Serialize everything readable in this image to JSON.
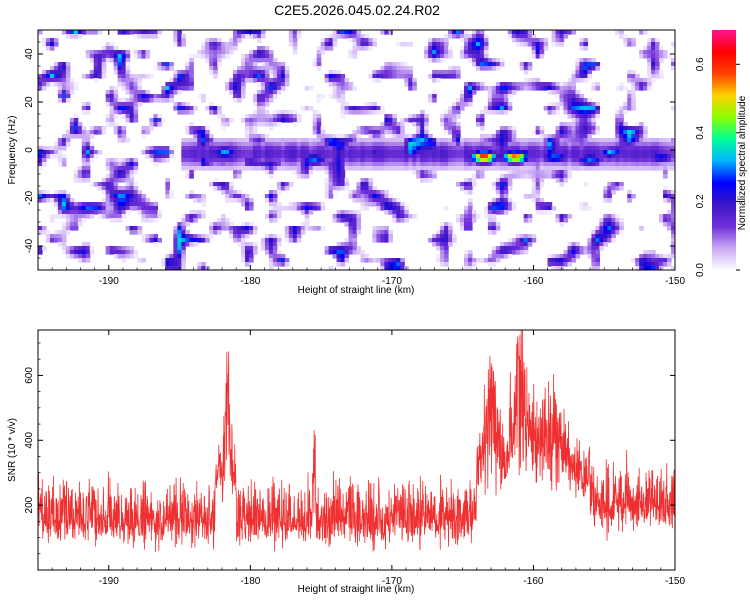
{
  "title": "C2E5.2026.045.02.24.R02",
  "chart_data": [
    {
      "type": "heatmap",
      "name": "spectrogram",
      "xlabel": "Height of straight line (km)",
      "ylabel": "Frequency (Hz)",
      "xlim": [
        -195,
        -150
      ],
      "ylim": [
        -50,
        50
      ],
      "xticks": [
        -190,
        -180,
        -170,
        -160,
        -150
      ],
      "yticks": [
        -40,
        -20,
        0,
        20,
        40
      ],
      "signal_band_hz": [
        -5,
        2
      ],
      "signal_range_km": [
        -185,
        -150
      ],
      "peaks": [
        {
          "x_km": -163.5,
          "freq_hz": -3,
          "amplitude": 0.62
        },
        {
          "x_km": -161.3,
          "freq_hz": -3,
          "amplitude": 0.58
        },
        {
          "x_km": -181.8,
          "freq_hz": -1,
          "amplitude": 0.32
        },
        {
          "x_km": -175.5,
          "freq_hz": -4,
          "amplitude": 0.3
        },
        {
          "x_km": -158.5,
          "freq_hz": -3,
          "amplitude": 0.3
        },
        {
          "x_km": -156.0,
          "freq_hz": -4,
          "amplitude": 0.3
        },
        {
          "x_km": -151.0,
          "freq_hz": -3,
          "amplitude": 0.25
        }
      ],
      "colorbar": {
        "label": "Normalized spectral amplitude",
        "range": [
          0.0,
          0.7
        ],
        "ticks": [
          0.0,
          0.2,
          0.4,
          0.6
        ],
        "colors": [
          "#ffffff",
          "#c9a8f5",
          "#6f2fd8",
          "#3b16c6",
          "#0000ff",
          "#00b4ff",
          "#00ff96",
          "#8cff00",
          "#ffd200",
          "#ff4000",
          "#ff0000",
          "#ff1493"
        ]
      }
    },
    {
      "type": "line",
      "name": "snr",
      "xlabel": "Height of straight line (km)",
      "ylabel": "SNR (10 * v/v)",
      "xlim": [
        -195,
        -150
      ],
      "ylim": [
        0,
        740
      ],
      "xticks": [
        -190,
        -180,
        -170,
        -160,
        -150
      ],
      "yticks": [
        200,
        400,
        600
      ],
      "color": "#f03030",
      "baseline_mean": 155,
      "noise_spread": 95,
      "bumps": [
        {
          "x_km": -181.6,
          "height": 420,
          "width_km": 0.25
        },
        {
          "x_km": -175.5,
          "height": 380,
          "width_km": 0.1
        },
        {
          "x_km": -163.0,
          "height": 350,
          "width_km": 0.8
        },
        {
          "x_km": -161.0,
          "height": 460,
          "width_km": 0.7
        },
        {
          "x_km": -159.0,
          "height": 300,
          "width_km": 1.5
        }
      ],
      "segments": [
        {
          "x_range": [
            -182.5,
            -181.0
          ],
          "mean": 280
        },
        {
          "x_range": [
            -164.0,
            -156.0
          ],
          "mean": 270
        },
        {
          "x_range": [
            -156.0,
            -150.0
          ],
          "mean": 200
        }
      ]
    }
  ]
}
